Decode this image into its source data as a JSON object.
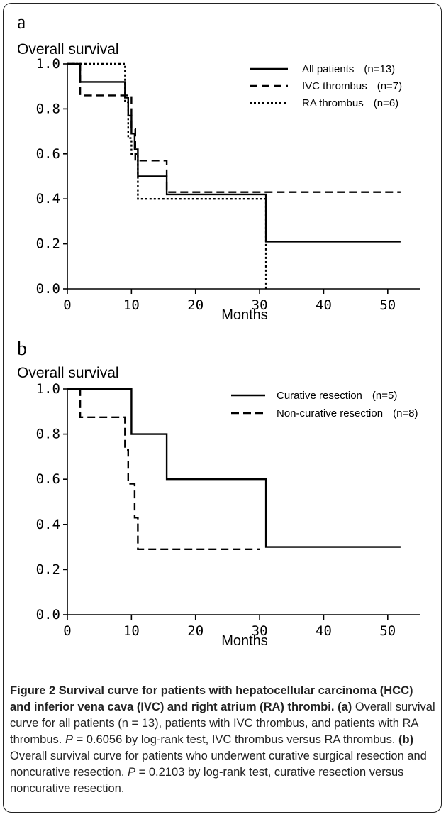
{
  "figure": {
    "caption": {
      "figure_label": "Figure 2",
      "title": "Survival curve for patients with hepatocellular carcinoma (HCC) and inferior vena cava (IVC) and right atrium (RA) thrombi.",
      "part_a_label": "(a)",
      "part_a_text": "Overall survival curve for all patients (n = 13), patients with IVC thrombus, and patients with RA thrombus.",
      "part_a_p_symbol": "P",
      "part_a_p_text": "= 0.6056 by log-rank test, IVC thrombus versus RA thrombus.",
      "part_b_label": "(b)",
      "part_b_text": "Overall survival curve for patients who underwent curative surgical resection and noncurative resection.",
      "part_b_p_symbol": "P",
      "part_b_p_text": "= 0.2103 by log-rank test, curative resection versus noncurative resection."
    }
  },
  "chart_data": [
    {
      "type": "line",
      "step": true,
      "panel_label": "a",
      "ylabel": "Overall survival",
      "xlabel": "Months",
      "xlim": [
        0,
        55
      ],
      "ylim": [
        0,
        1.0
      ],
      "x_ticks": [
        0,
        10,
        20,
        30,
        40,
        50
      ],
      "x_tick_labels": [
        "0",
        "10",
        "20",
        "30",
        "40",
        "50"
      ],
      "y_ticks": [
        0,
        0.2,
        0.4,
        0.6,
        0.8,
        1.0
      ],
      "y_tick_labels": [
        "0.0",
        "0.2",
        "0.4",
        "0.6",
        "0.8",
        "1.0"
      ],
      "legend_position": "top-right",
      "series": [
        {
          "name": "All patients",
          "n_label": "(n=13)",
          "style": "solid",
          "points": [
            [
              0,
              1.0
            ],
            [
              2,
              1.0
            ],
            [
              2,
              0.92
            ],
            [
              9,
              0.92
            ],
            [
              9,
              0.85
            ],
            [
              9.5,
              0.85
            ],
            [
              9.5,
              0.77
            ],
            [
              10,
              0.77
            ],
            [
              10,
              0.69
            ],
            [
              10.5,
              0.69
            ],
            [
              10.5,
              0.62
            ],
            [
              11,
              0.62
            ],
            [
              11,
              0.5
            ],
            [
              15.5,
              0.5
            ],
            [
              15.5,
              0.42
            ],
            [
              31,
              0.42
            ],
            [
              31,
              0.21
            ],
            [
              52,
              0.21
            ]
          ]
        },
        {
          "name": "IVC thrombus",
          "n_label": "(n=7)",
          "style": "dashed",
          "points": [
            [
              0,
              1.0
            ],
            [
              2,
              1.0
            ],
            [
              2,
              0.86
            ],
            [
              10,
              0.86
            ],
            [
              10,
              0.71
            ],
            [
              10.6,
              0.71
            ],
            [
              10.6,
              0.57
            ],
            [
              15.5,
              0.57
            ],
            [
              15.5,
              0.43
            ],
            [
              52,
              0.43
            ]
          ]
        },
        {
          "name": "RA thrombus",
          "n_label": "(n=6)",
          "style": "dotted",
          "points": [
            [
              0,
              1.0
            ],
            [
              9,
              1.0
            ],
            [
              9,
              0.83
            ],
            [
              9.5,
              0.83
            ],
            [
              9.5,
              0.67
            ],
            [
              10,
              0.67
            ],
            [
              10,
              0.6
            ],
            [
              11,
              0.6
            ],
            [
              11,
              0.4
            ],
            [
              31,
              0.4
            ],
            [
              31,
              0.0
            ]
          ]
        }
      ]
    },
    {
      "type": "line",
      "step": true,
      "panel_label": "b",
      "ylabel": "Overall survival",
      "xlabel": "Months",
      "xlim": [
        0,
        55
      ],
      "ylim": [
        0,
        1.0
      ],
      "x_ticks": [
        0,
        10,
        20,
        30,
        40,
        50
      ],
      "x_tick_labels": [
        "0",
        "10",
        "20",
        "30",
        "40",
        "50"
      ],
      "y_ticks": [
        0,
        0.2,
        0.4,
        0.6,
        0.8,
        1.0
      ],
      "y_tick_labels": [
        "0.0",
        "0.2",
        "0.4",
        "0.6",
        "0.8",
        "1.0"
      ],
      "legend_position": "top-right",
      "series": [
        {
          "name": "Curative resection",
          "n_label": "(n=5)",
          "style": "solid",
          "points": [
            [
              0,
              1.0
            ],
            [
              10,
              1.0
            ],
            [
              10,
              0.8
            ],
            [
              15.5,
              0.8
            ],
            [
              15.5,
              0.6
            ],
            [
              31,
              0.6
            ],
            [
              31,
              0.3
            ],
            [
              52,
              0.3
            ]
          ]
        },
        {
          "name": "Non-curative resection",
          "n_label": "(n=8)",
          "style": "dashed",
          "points": [
            [
              0,
              1.0
            ],
            [
              2,
              1.0
            ],
            [
              2,
              0.875
            ],
            [
              9,
              0.875
            ],
            [
              9,
              0.73
            ],
            [
              9.5,
              0.73
            ],
            [
              9.5,
              0.58
            ],
            [
              10.5,
              0.58
            ],
            [
              10.5,
              0.43
            ],
            [
              11,
              0.43
            ],
            [
              11,
              0.29
            ],
            [
              30,
              0.29
            ]
          ]
        }
      ]
    }
  ]
}
